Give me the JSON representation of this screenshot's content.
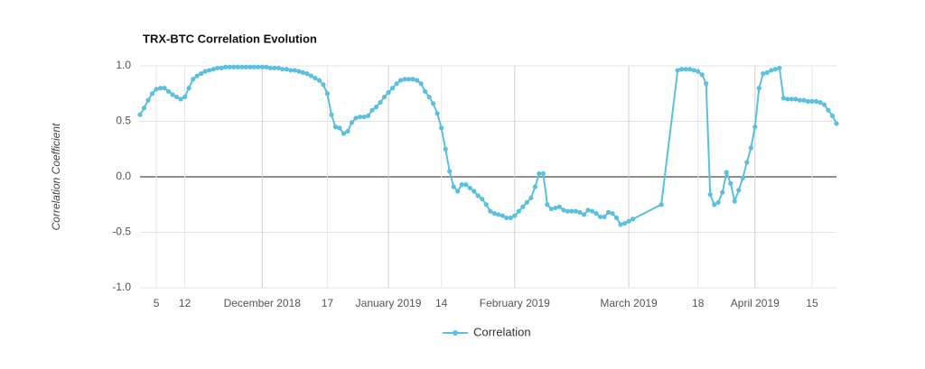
{
  "chart_data": {
    "type": "line",
    "title": "TRX-BTC Correlation Evolution",
    "ylabel": "Correlation Coefficient",
    "x": [
      "2018-11-01",
      "2018-11-02",
      "2018-11-03",
      "2018-11-04",
      "2018-11-05",
      "2018-11-06",
      "2018-11-07",
      "2018-11-08",
      "2018-11-09",
      "2018-11-10",
      "2018-11-11",
      "2018-11-12",
      "2018-11-13",
      "2018-11-14",
      "2018-11-15",
      "2018-11-16",
      "2018-11-17",
      "2018-11-18",
      "2018-11-19",
      "2018-11-20",
      "2018-11-21",
      "2018-11-22",
      "2018-11-23",
      "2018-11-24",
      "2018-11-25",
      "2018-11-26",
      "2018-11-27",
      "2018-11-28",
      "2018-11-29",
      "2018-11-30",
      "2018-12-01",
      "2018-12-02",
      "2018-12-03",
      "2018-12-04",
      "2018-12-05",
      "2018-12-06",
      "2018-12-07",
      "2018-12-08",
      "2018-12-09",
      "2018-12-10",
      "2018-12-11",
      "2018-12-12",
      "2018-12-13",
      "2018-12-14",
      "2018-12-15",
      "2018-12-16",
      "2018-12-17",
      "2018-12-18",
      "2018-12-19",
      "2018-12-20",
      "2018-12-21",
      "2018-12-22",
      "2018-12-23",
      "2018-12-24",
      "2018-12-25",
      "2018-12-26",
      "2018-12-27",
      "2018-12-28",
      "2018-12-29",
      "2018-12-30",
      "2018-12-31",
      "2019-01-01",
      "2019-01-02",
      "2019-01-03",
      "2019-01-04",
      "2019-01-05",
      "2019-01-06",
      "2019-01-07",
      "2019-01-08",
      "2019-01-09",
      "2019-01-10",
      "2019-01-11",
      "2019-01-12",
      "2019-01-13",
      "2019-01-14",
      "2019-01-15",
      "2019-01-16",
      "2019-01-17",
      "2019-01-18",
      "2019-01-19",
      "2019-01-20",
      "2019-01-21",
      "2019-01-22",
      "2019-01-23",
      "2019-01-24",
      "2019-01-25",
      "2019-01-26",
      "2019-01-27",
      "2019-01-28",
      "2019-01-29",
      "2019-01-30",
      "2019-01-31",
      "2019-02-01",
      "2019-02-02",
      "2019-02-03",
      "2019-02-04",
      "2019-02-05",
      "2019-02-06",
      "2019-02-07",
      "2019-02-08",
      "2019-02-09",
      "2019-02-10",
      "2019-02-11",
      "2019-02-12",
      "2019-02-13",
      "2019-02-14",
      "2019-02-15",
      "2019-02-16",
      "2019-02-17",
      "2019-02-18",
      "2019-02-19",
      "2019-02-20",
      "2019-02-21",
      "2019-02-22",
      "2019-02-23",
      "2019-02-24",
      "2019-02-25",
      "2019-02-26",
      "2019-02-27",
      "2019-02-28",
      "2019-03-01",
      "2019-03-02",
      "2019-03-09",
      "2019-03-13",
      "2019-03-14",
      "2019-03-15",
      "2019-03-16",
      "2019-03-17",
      "2019-03-18",
      "2019-03-19",
      "2019-03-20",
      "2019-03-21",
      "2019-03-22",
      "2019-03-23",
      "2019-03-24",
      "2019-03-25",
      "2019-03-26",
      "2019-03-27",
      "2019-03-28",
      "2019-03-29",
      "2019-03-30",
      "2019-03-31",
      "2019-04-01",
      "2019-04-02",
      "2019-04-03",
      "2019-04-04",
      "2019-04-05",
      "2019-04-06",
      "2019-04-07",
      "2019-04-08",
      "2019-04-09",
      "2019-04-10",
      "2019-04-11",
      "2019-04-12",
      "2019-04-13",
      "2019-04-14",
      "2019-04-15",
      "2019-04-16",
      "2019-04-17",
      "2019-04-18",
      "2019-04-19",
      "2019-04-20",
      "2019-04-21"
    ],
    "series": [
      {
        "name": "Correlation",
        "color": "#5bc0de",
        "values": [
          0.56,
          0.62,
          0.69,
          0.75,
          0.79,
          0.8,
          0.8,
          0.77,
          0.74,
          0.72,
          0.7,
          0.72,
          0.8,
          0.88,
          0.91,
          0.93,
          0.95,
          0.96,
          0.97,
          0.98,
          0.98,
          0.99,
          0.99,
          0.99,
          0.99,
          0.99,
          0.99,
          0.99,
          0.99,
          0.99,
          0.99,
          0.99,
          0.98,
          0.98,
          0.98,
          0.97,
          0.97,
          0.96,
          0.96,
          0.95,
          0.94,
          0.93,
          0.91,
          0.89,
          0.87,
          0.83,
          0.75,
          0.56,
          0.45,
          0.44,
          0.39,
          0.41,
          0.49,
          0.53,
          0.54,
          0.54,
          0.55,
          0.6,
          0.63,
          0.67,
          0.72,
          0.76,
          0.8,
          0.84,
          0.87,
          0.88,
          0.88,
          0.88,
          0.87,
          0.84,
          0.77,
          0.72,
          0.66,
          0.57,
          0.44,
          0.25,
          0.05,
          -0.09,
          -0.13,
          -0.07,
          -0.07,
          -0.1,
          -0.13,
          -0.17,
          -0.2,
          -0.25,
          -0.31,
          -0.33,
          -0.34,
          -0.35,
          -0.37,
          -0.37,
          -0.35,
          -0.31,
          -0.27,
          -0.23,
          -0.19,
          -0.09,
          0.03,
          0.03,
          -0.25,
          -0.29,
          -0.28,
          -0.27,
          -0.3,
          -0.31,
          -0.31,
          -0.31,
          -0.32,
          -0.34,
          -0.3,
          -0.31,
          -0.33,
          -0.36,
          -0.36,
          -0.32,
          -0.33,
          -0.37,
          -0.43,
          -0.42,
          -0.4,
          -0.38,
          -0.25,
          0.96,
          0.97,
          0.97,
          0.97,
          0.96,
          0.95,
          0.92,
          0.84,
          -0.16,
          -0.25,
          -0.23,
          -0.14,
          0.04,
          -0.06,
          -0.22,
          -0.12,
          -0.01,
          0.13,
          0.26,
          0.45,
          0.8,
          0.93,
          0.94,
          0.96,
          0.97,
          0.98,
          0.71,
          0.7,
          0.7,
          0.7,
          0.69,
          0.69,
          0.68,
          0.68,
          0.68,
          0.67,
          0.65,
          0.6,
          0.55,
          0.48
        ]
      }
    ],
    "xlim": [
      "2018-11-01",
      "2019-04-21"
    ],
    "xticks": [
      {
        "value": "2018-11-05",
        "label": "5"
      },
      {
        "value": "2018-11-12",
        "label": "12"
      },
      {
        "value": "2018-12-01",
        "label": "December 2018"
      },
      {
        "value": "2018-12-17",
        "label": "17"
      },
      {
        "value": "2019-01-01",
        "label": "January 2019"
      },
      {
        "value": "2019-01-14",
        "label": "14"
      },
      {
        "value": "2019-02-01",
        "label": "February 2019"
      },
      {
        "value": "2019-03-01",
        "label": "March 2019"
      },
      {
        "value": "2019-03-18",
        "label": "18"
      },
      {
        "value": "2019-04-01",
        "label": "April 2019"
      },
      {
        "value": "2019-04-15",
        "label": "15"
      }
    ],
    "ylim": [
      -1,
      1
    ],
    "yticks": [
      {
        "value": -1,
        "label": "-1.0"
      },
      {
        "value": -0.5,
        "label": "-0.5"
      },
      {
        "value": 0,
        "label": "0.0"
      },
      0.5,
      {
        "value": 1,
        "label": "1.0"
      }
    ],
    "grid": true,
    "legend": "bottom"
  }
}
